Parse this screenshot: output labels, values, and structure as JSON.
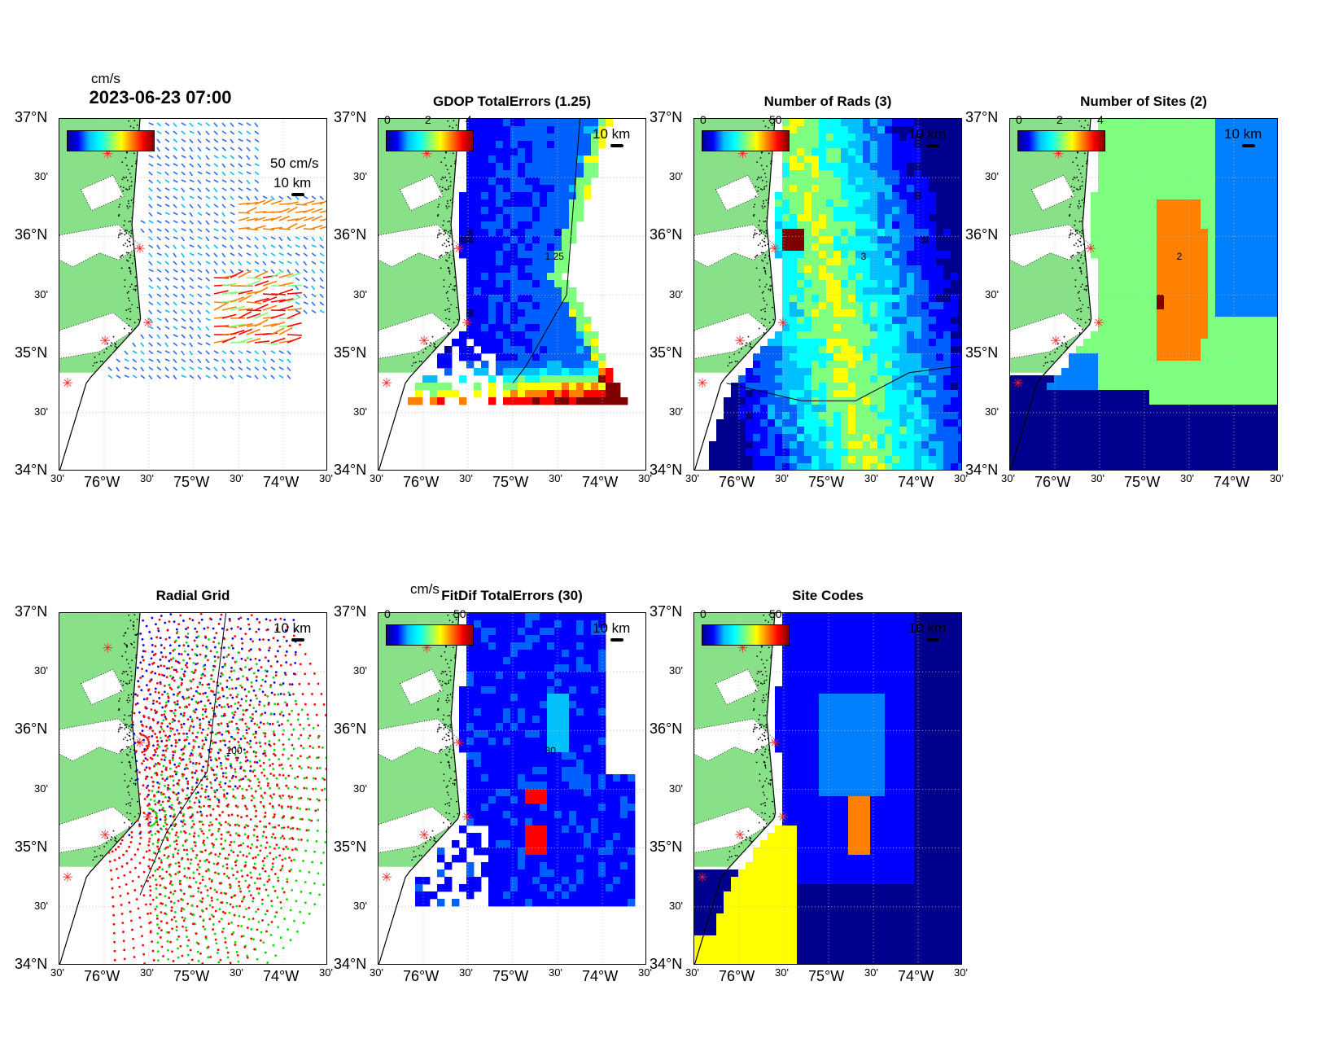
{
  "figure": {
    "main_title": "2023-06-23 07:00",
    "main_unit": "cm/s",
    "vector_scale_label": "50 cm/s",
    "scale_km_label": "10 km"
  },
  "axes": {
    "lat_labels": [
      "37°N",
      "30'",
      "36°N",
      "30'",
      "35°N",
      "30'",
      "34°N"
    ],
    "lon_labels": [
      "30'",
      "76°W",
      "30'",
      "75°W",
      "30'",
      "74°W",
      "30'"
    ]
  },
  "panels": [
    {
      "id": "currents",
      "title": "2023-06-23 07:00",
      "unit": "cm/s",
      "cbar_ticks": [],
      "contour_label": "",
      "map_type": "vectors",
      "colors": [
        "#2a6bff",
        "#00bfff",
        "#7fff7f",
        "#ff8000",
        "#ff0000"
      ]
    },
    {
      "id": "gdop",
      "title": "GDOP TotalErrors (1.25)",
      "unit": "",
      "cbar_ticks": [
        "0",
        "2",
        "4"
      ],
      "contour_label": "1.25",
      "map_type": "gdop"
    },
    {
      "id": "nrads",
      "title": "Number of Rads (3)",
      "unit": "",
      "cbar_ticks": [
        "0",
        "50"
      ],
      "contour_label": "3",
      "map_type": "nrads"
    },
    {
      "id": "nsites",
      "title": "Number of Sites (2)",
      "unit": "",
      "cbar_ticks": [
        "0",
        "2",
        "4"
      ],
      "contour_label": "2",
      "map_type": "nsites"
    },
    {
      "id": "radial",
      "title": "Radial Grid",
      "unit": "",
      "cbar_ticks": [],
      "contour_label": "100",
      "map_type": "radial",
      "colors": [
        "#0000ff",
        "#ff0000",
        "#00dd00"
      ]
    },
    {
      "id": "fitdif",
      "title": "FitDif TotalErrors (30)",
      "unit": "cm/s",
      "cbar_ticks": [
        "0",
        "50"
      ],
      "contour_label": "30",
      "map_type": "fitdif"
    },
    {
      "id": "sitecodes",
      "title": "Site Codes",
      "unit": "",
      "cbar_ticks": [
        "0",
        "50"
      ],
      "contour_label": "",
      "map_type": "sitecodes"
    }
  ],
  "colors": {
    "land": "#88e088",
    "coast": "#000000",
    "site_marker": "#ff2020"
  }
}
